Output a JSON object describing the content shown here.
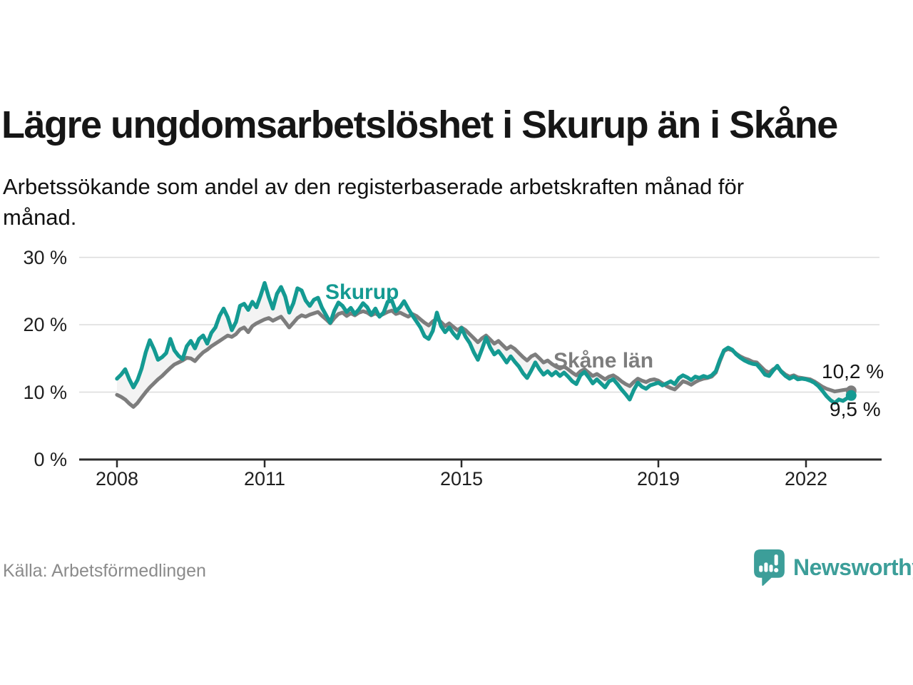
{
  "title": "Lägre ungdomsarbetslöshet i Skurup än i Skåne",
  "subtitle": "Arbetssökande som andel av den registerbaserade arbetskraften månad för månad.",
  "source": "Källa: Arbetsförmedlingen",
  "brand": {
    "name": "Newsworthy",
    "color": "#3C9E99",
    "icon": "speech-bubble-bar-chart-icon"
  },
  "colors": {
    "skurup_line": "#149A92",
    "skane_line": "#7D7D7D",
    "band_fill": "#F3F3F3",
    "gridline": "#DEDEDE",
    "axis": "#2B2B2B",
    "tick_text": "#1F1F1F",
    "annotation_text": "#161616",
    "muted_text": "#8B8B8B"
  },
  "chart_data": {
    "type": "line",
    "unit": "%",
    "frequency": "monthly",
    "start": {
      "year": 2008,
      "month": 1
    },
    "end": {
      "year": 2022,
      "month": 12
    },
    "grid": "horizontal",
    "legend_position": "inline-labels",
    "ylim": [
      0,
      31.5
    ],
    "x_ticks": [
      2008,
      2011,
      2015,
      2019,
      2022
    ],
    "y_ticks": [
      {
        "value": 0,
        "label": "0 %"
      },
      {
        "value": 10,
        "label": "10 %"
      },
      {
        "value": 20,
        "label": "20 %"
      },
      {
        "value": 30,
        "label": "30 %"
      }
    ],
    "series": [
      {
        "name": "Skurup",
        "color": "#149A92",
        "end_value": 9.5,
        "end_label": "9,5 %",
        "values": [
          12.0,
          12.6,
          13.4,
          11.9,
          10.7,
          11.8,
          13.5,
          15.9,
          17.7,
          16.4,
          14.8,
          15.2,
          15.8,
          17.9,
          16.2,
          15.4,
          14.9,
          16.8,
          17.6,
          16.5,
          17.9,
          18.4,
          17.2,
          18.8,
          19.6,
          21.3,
          22.4,
          21.1,
          19.2,
          20.4,
          22.8,
          23.1,
          22.2,
          23.4,
          22.6,
          24.3,
          26.2,
          24.1,
          22.4,
          24.6,
          25.6,
          24.2,
          21.8,
          23.2,
          25.4,
          25.1,
          23.6,
          22.8,
          23.7,
          24.0,
          22.5,
          21.4,
          20.3,
          22.1,
          23.3,
          22.8,
          21.9,
          22.5,
          21.6,
          22.3,
          23.2,
          22.6,
          21.5,
          22.4,
          21.2,
          21.8,
          23.4,
          23.6,
          22.0,
          22.6,
          23.5,
          22.4,
          21.4,
          20.5,
          19.6,
          18.3,
          17.9,
          19.1,
          21.8,
          19.8,
          18.9,
          19.6,
          18.7,
          18.0,
          19.5,
          18.2,
          17.3,
          15.9,
          14.8,
          16.4,
          18.1,
          16.6,
          15.6,
          16.1,
          15.3,
          14.4,
          15.3,
          14.5,
          13.8,
          12.8,
          12.1,
          13.2,
          14.4,
          13.4,
          12.6,
          13.1,
          12.5,
          13.0,
          12.4,
          12.9,
          12.3,
          11.6,
          11.2,
          12.5,
          13.0,
          12.2,
          11.3,
          11.9,
          11.3,
          10.7,
          11.6,
          11.9,
          11.2,
          10.4,
          9.7,
          8.9,
          10.3,
          11.4,
          10.8,
          10.5,
          11.0,
          11.2,
          11.4,
          11.0,
          11.3,
          11.6,
          11.2,
          12.1,
          12.5,
          12.2,
          11.8,
          12.3,
          12.1,
          12.4,
          12.2,
          12.5,
          13.1,
          14.8,
          16.2,
          16.6,
          16.3,
          15.6,
          15.1,
          14.7,
          14.4,
          14.2,
          14.1,
          13.4,
          12.6,
          12.4,
          13.2,
          13.9,
          13.0,
          12.4,
          12.0,
          12.3,
          11.9,
          12.0,
          11.9,
          11.7,
          11.4,
          10.9,
          10.2,
          9.4,
          8.8,
          8.4,
          8.9,
          8.7,
          9.1,
          9.5
        ]
      },
      {
        "name": "Skåne län",
        "color": "#7D7D7D",
        "end_value": 10.2,
        "end_label": "10,2 %",
        "values": [
          9.6,
          9.3,
          8.9,
          8.3,
          7.8,
          8.4,
          9.2,
          10.0,
          10.7,
          11.3,
          11.9,
          12.4,
          13.0,
          13.6,
          14.1,
          14.4,
          14.7,
          15.1,
          15.0,
          14.6,
          15.3,
          15.9,
          16.3,
          16.8,
          17.2,
          17.6,
          18.0,
          18.4,
          18.2,
          18.6,
          19.3,
          19.6,
          18.9,
          19.8,
          20.2,
          20.5,
          20.8,
          21.0,
          20.6,
          20.9,
          21.2,
          20.4,
          19.6,
          20.3,
          21.0,
          21.4,
          21.2,
          21.5,
          21.7,
          21.9,
          21.3,
          20.8,
          20.2,
          21.0,
          21.6,
          21.8,
          21.3,
          21.7,
          21.4,
          21.8,
          22.0,
          21.8,
          21.4,
          21.7,
          21.3,
          21.6,
          21.9,
          22.1,
          21.6,
          21.8,
          21.5,
          21.2,
          21.6,
          21.3,
          20.8,
          20.3,
          19.9,
          20.5,
          20.9,
          20.4,
          19.8,
          20.2,
          19.7,
          19.2,
          19.6,
          19.2,
          18.6,
          18.0,
          17.4,
          18.0,
          18.4,
          17.8,
          17.2,
          17.6,
          17.0,
          16.4,
          16.8,
          16.4,
          15.8,
          15.2,
          14.7,
          15.3,
          15.6,
          15.0,
          14.4,
          14.7,
          14.2,
          13.8,
          13.5,
          13.8,
          13.4,
          12.9,
          12.5,
          13.1,
          13.4,
          12.9,
          12.4,
          12.7,
          12.3,
          11.9,
          12.3,
          12.5,
          12.1,
          11.6,
          11.2,
          10.9,
          11.5,
          12.0,
          11.7,
          11.5,
          11.8,
          11.9,
          11.7,
          11.3,
          10.9,
          10.6,
          10.4,
          11.0,
          11.6,
          11.4,
          11.1,
          11.5,
          11.8,
          12.0,
          12.1,
          12.3,
          12.9,
          14.6,
          16.1,
          16.4,
          16.2,
          15.7,
          15.3,
          15.0,
          14.8,
          14.5,
          14.4,
          13.8,
          13.2,
          12.9,
          13.4,
          13.7,
          13.1,
          12.6,
          12.3,
          12.5,
          12.2,
          12.1,
          12.0,
          11.9,
          11.6,
          11.2,
          10.8,
          10.5,
          10.3,
          10.1,
          10.2,
          10.3,
          10.4,
          10.2
        ]
      }
    ]
  }
}
